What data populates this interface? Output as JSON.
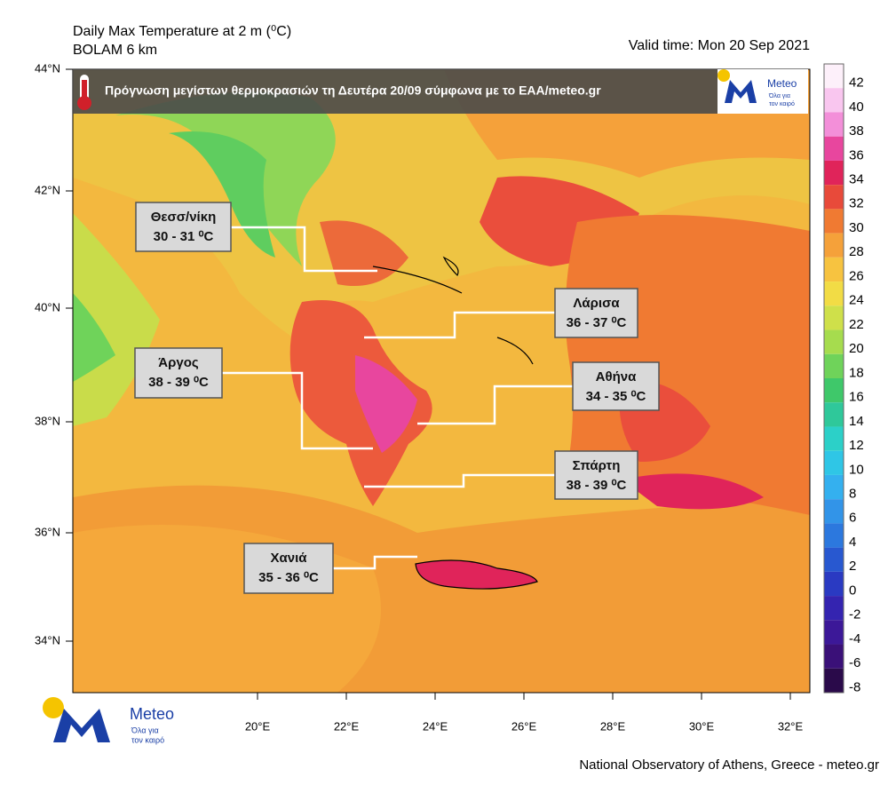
{
  "header": {
    "title": "Daily Max Temperature at 2 m (⁰C)",
    "subtitle": "BOLAM 6 km",
    "valid_time": "Valid time: Mon 20 Sep 2021"
  },
  "banner": {
    "text": "Πρόγνωση μεγίστων θερμοκρασιών  τη Δευτέρα 20/09 σύμφωνα με το ΕΑΑ/meteo.gr",
    "logo_name": "Meteo",
    "logo_tagline": [
      "Όλα για",
      "τον καιρό"
    ]
  },
  "cities": [
    {
      "name": "Θεσσ/νίκη",
      "range": "30 - 31 ⁰C"
    },
    {
      "name": "Λάρισα",
      "range": "36 - 37 ⁰C"
    },
    {
      "name": "Άργος",
      "range": "38 - 39 ⁰C"
    },
    {
      "name": "Αθήνα",
      "range": "34 - 35 ⁰C"
    },
    {
      "name": "Σπάρτη",
      "range": "38 - 39 ⁰C"
    },
    {
      "name": "Χανιά",
      "range": "35 - 36 ⁰C"
    }
  ],
  "map": {
    "lat_labels": [
      "44°N",
      "42°N",
      "40°N",
      "38°N",
      "36°N",
      "34°N"
    ],
    "lon_labels": [
      "20°E",
      "22°E",
      "24°E",
      "26°E",
      "28°E",
      "30°E",
      "32°E"
    ]
  },
  "colorbar": {
    "ticks": [
      42,
      40,
      38,
      36,
      34,
      32,
      30,
      28,
      26,
      24,
      22,
      20,
      18,
      16,
      14,
      12,
      10,
      8,
      6,
      4,
      2,
      0,
      -2,
      -4,
      -6,
      -8
    ],
    "colors": [
      "#fdf0fa",
      "#f9c6ef",
      "#f38fd9",
      "#e8469e",
      "#e0245a",
      "#e84a3a",
      "#f07a32",
      "#f5a13a",
      "#f7c340",
      "#f2dc45",
      "#cfe04a",
      "#a6dc4e",
      "#6fd35a",
      "#3fc86a",
      "#2fc89a",
      "#2cd0c8",
      "#2fc6e6",
      "#34b0ef",
      "#3294e8",
      "#2c78de",
      "#2858d0",
      "#2a3ac2",
      "#3424b0",
      "#3c1898",
      "#3a1078",
      "#2a0a4a"
    ]
  },
  "footer": {
    "logo_name": "Meteo",
    "logo_tagline": [
      "Όλα για",
      "τον καιρό"
    ],
    "credit": "National Observatory of Athens, Greece - meteo.gr"
  }
}
